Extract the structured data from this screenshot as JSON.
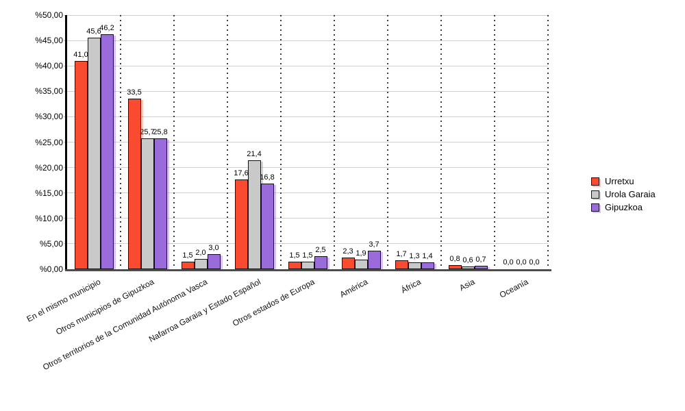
{
  "chart_data": {
    "type": "bar",
    "title": "",
    "categories": [
      "En el mismo municipio",
      "Otros municipios de Gipuzkoa",
      "Otros territorios de la Comunidad Autónoma Vasca",
      "Nafarroa Garaia y Estado Español",
      "Otros estados de Europa",
      "América",
      "África",
      "Asia",
      "Oceanía"
    ],
    "series": [
      {
        "name": "Urretxu",
        "color": "#FA4B31",
        "shadow": "rgba(250,75,49,0.35)",
        "values": [
          41.0,
          33.5,
          1.5,
          17.6,
          1.5,
          2.3,
          1.7,
          0.8,
          0.0
        ]
      },
      {
        "name": "Urola Garaia",
        "color": "#C9C9C9",
        "shadow": "rgba(130,130,130,0.35)",
        "values": [
          45.6,
          25.7,
          2.0,
          21.4,
          1.5,
          1.9,
          1.3,
          0.6,
          0.0
        ]
      },
      {
        "name": "Gipuzkoa",
        "color": "#9A6CDB",
        "shadow": "rgba(154,108,219,0.4)",
        "values": [
          46.2,
          25.8,
          3.0,
          16.8,
          2.5,
          3.7,
          1.4,
          0.7,
          0.0
        ]
      }
    ],
    "y_axis": {
      "min": 0,
      "max": 50,
      "step": 5,
      "tick_labels": [
        "%0,00",
        "%5,00",
        "%10,00",
        "%15,00",
        "%20,00",
        "%25,00",
        "%30,00",
        "%35,00",
        "%40,00",
        "%45,00",
        "%50,00"
      ]
    },
    "value_label_format": "decimal-comma, one decimal (e.g. 41,0)",
    "grid": {
      "horizontal": "solid-light-gray",
      "vertical": "dotted-dark"
    },
    "legend": {
      "position": "right",
      "entries": [
        "Urretxu",
        "Urola Garaia",
        "Gipuzkoa"
      ]
    }
  },
  "colors": {
    "background": "#ffffff",
    "axis": "#000000",
    "baseline": "#4d4d4d",
    "gridline": "#cfcfcf",
    "text": "#000000"
  }
}
